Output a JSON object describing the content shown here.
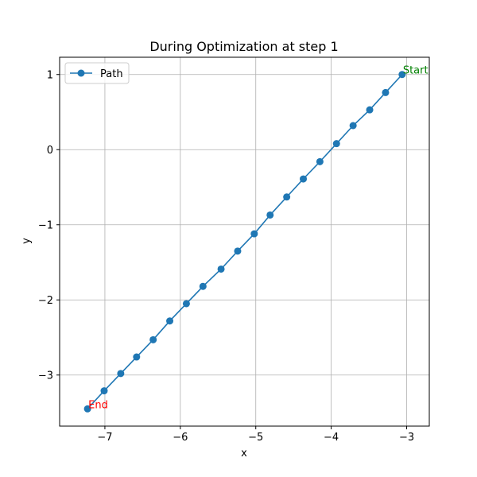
{
  "chart_data": {
    "type": "line",
    "title": "During Optimization at step 1",
    "xlabel": "x",
    "ylabel": "y",
    "xlim": [
      -7.6,
      -2.7
    ],
    "ylim": [
      -3.68,
      1.23
    ],
    "x_ticks": [
      -7,
      -6,
      -5,
      -4,
      -3
    ],
    "y_ticks": [
      1,
      0,
      -1,
      -2,
      -3
    ],
    "x_tick_labels": [
      "−7",
      "−6",
      "−5",
      "−4",
      "−3"
    ],
    "y_tick_labels": [
      "1",
      "0",
      "−1",
      "−2",
      "−3"
    ],
    "grid": true,
    "legend": {
      "placement": "top-left",
      "entries": [
        "Path"
      ]
    },
    "series": [
      {
        "name": "Path",
        "color": "#1f77b4",
        "marker": "circle",
        "x": [
          -3.06,
          -3.28,
          -3.49,
          -3.71,
          -3.93,
          -4.15,
          -4.37,
          -4.59,
          -4.81,
          -5.02,
          -5.24,
          -5.46,
          -5.7,
          -5.92,
          -6.14,
          -6.36,
          -6.58,
          -6.79,
          -7.01,
          -7.23
        ],
        "y": [
          1.0,
          0.76,
          0.53,
          0.32,
          0.08,
          -0.16,
          -0.39,
          -0.63,
          -0.87,
          -1.12,
          -1.35,
          -1.59,
          -1.82,
          -2.05,
          -2.28,
          -2.53,
          -2.76,
          -2.98,
          -3.21,
          -3.45
        ]
      }
    ],
    "annotations": [
      {
        "text": "Start",
        "x": -3.06,
        "y": 1.0,
        "color": "#008000"
      },
      {
        "text": "End",
        "x": -7.23,
        "y": -3.45,
        "color": "#ff0000"
      }
    ]
  }
}
